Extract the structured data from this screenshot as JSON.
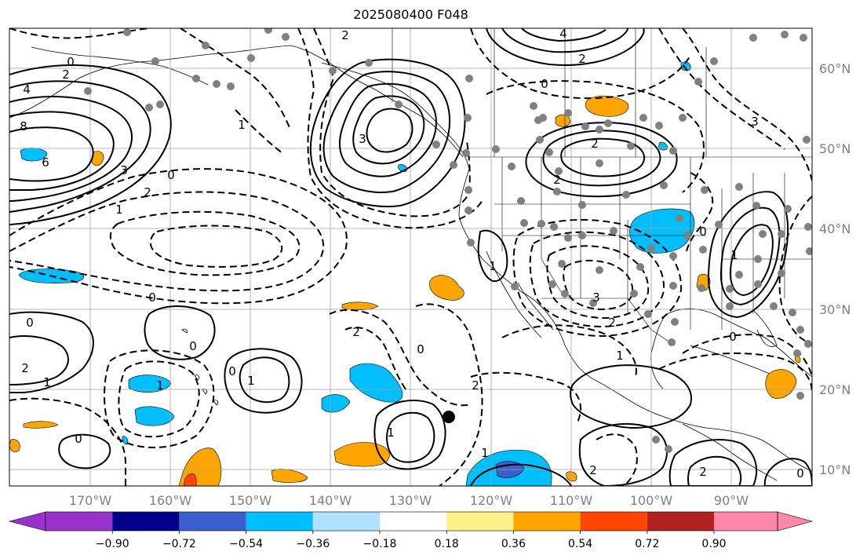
{
  "title": "2025080400 F048",
  "lat_labels": [
    {
      "lat": 60,
      "text": "60°N"
    },
    {
      "lat": 50,
      "text": "50°N"
    },
    {
      "lat": 40,
      "text": "40°N"
    },
    {
      "lat": 30,
      "text": "30°N"
    },
    {
      "lat": 20,
      "text": "20°N"
    },
    {
      "lat": 10,
      "text": "10°N"
    }
  ],
  "lon_labels": [
    {
      "lon": -170,
      "text": "170°W"
    },
    {
      "lon": -160,
      "text": "160°W"
    },
    {
      "lon": -150,
      "text": "150°W"
    },
    {
      "lon": -140,
      "text": "140°W"
    },
    {
      "lon": -130,
      "text": "130°W"
    },
    {
      "lon": -120,
      "text": "120°W"
    },
    {
      "lon": -110,
      "text": "110°W"
    },
    {
      "lon": -100,
      "text": "100°W"
    },
    {
      "lon": -90,
      "text": "90°W"
    }
  ],
  "extent": {
    "lon_min": -180,
    "lon_max": -80,
    "lat_min": 8,
    "lat_max": 65
  },
  "colorbar": {
    "colors": [
      "#9932cc",
      "#00008b",
      "#3a5fcd",
      "#00bfff",
      "#b0e2ff",
      "#ffffff",
      "#fff08a",
      "#ffa500",
      "#ff4500",
      "#b22222",
      "#ff88aa"
    ],
    "ticks": [
      "−0.90",
      "−0.72",
      "−0.54",
      "−0.36",
      "−0.18",
      "0.18",
      "0.36",
      "0.54",
      "0.72",
      "0.90"
    ]
  },
  "contour_labels": [
    "0",
    "2",
    "4",
    "6",
    "8",
    "3",
    "1",
    "2",
    "0",
    "1",
    "2",
    "3",
    "4",
    "2",
    "0",
    "2",
    "3",
    "2",
    "1",
    "0",
    "1",
    "0",
    "1",
    "0",
    "2",
    "1",
    "0",
    "3",
    "2",
    "1",
    "0",
    "1",
    "2",
    "1",
    "0",
    "2",
    "0",
    "1",
    "0",
    "2",
    "0",
    "2"
  ]
}
